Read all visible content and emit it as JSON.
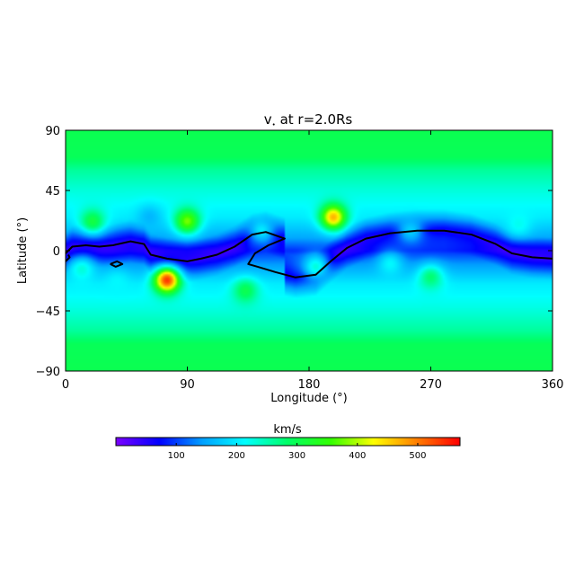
{
  "chart_data": {
    "type": "heatmap",
    "title": "v",
    "title_subscript": "•",
    "title_rest": " at r=2.0Rs",
    "xlabel": "Longitude (°)",
    "ylabel": "Latitude (°)",
    "xlim": [
      0,
      360
    ],
    "ylim": [
      -90,
      90
    ],
    "xticks": [
      "0",
      "90",
      "180",
      "270",
      "360"
    ],
    "yticks": [
      "90",
      "45",
      "0",
      "−45",
      "−90"
    ],
    "xtick_values": [
      0,
      90,
      180,
      270,
      360
    ],
    "ytick_values": [
      90,
      45,
      0,
      -45,
      -90
    ],
    "colorbar": {
      "label": "km/s",
      "range": [
        0,
        570
      ],
      "ticks": [
        "100",
        "200",
        "300",
        "400",
        "500"
      ],
      "tick_values": [
        100,
        200,
        300,
        400,
        500
      ],
      "colormap": [
        "#7a00ff",
        "#0000ff",
        "#00a0ff",
        "#00ffff",
        "#00ff66",
        "#33ff00",
        "#ffff00",
        "#ff8000",
        "#ff0000"
      ]
    },
    "background_field": [
      {
        "lat": 90,
        "v": 300
      },
      {
        "lat": 70,
        "v": 295
      },
      {
        "lat": 60,
        "v": 260
      },
      {
        "lat": 45,
        "v": 230
      },
      {
        "lat": 25,
        "v": 200
      },
      {
        "lat": 10,
        "v": 150
      },
      {
        "lat": 0,
        "v": 90
      },
      {
        "lat": -10,
        "v": 140
      },
      {
        "lat": -25,
        "v": 200
      },
      {
        "lat": -45,
        "v": 230
      },
      {
        "lat": -60,
        "v": 260
      },
      {
        "lat": -70,
        "v": 295
      },
      {
        "lat": -90,
        "v": 300
      }
    ],
    "features": [
      {
        "lon": 20,
        "lat": 22,
        "v": 310
      },
      {
        "lon": 12,
        "lat": -14,
        "v": 230
      },
      {
        "lon": 90,
        "lat": 22,
        "v": 380
      },
      {
        "lon": 198,
        "lat": 25,
        "v": 470
      },
      {
        "lon": 75,
        "lat": -22,
        "v": 540
      },
      {
        "lon": 133,
        "lat": -30,
        "v": 300
      },
      {
        "lon": 270,
        "lat": -20,
        "v": 280
      },
      {
        "lon": 185,
        "lat": -12,
        "v": 230
      },
      {
        "lon": 145,
        "lat": 15,
        "v": 200
      },
      {
        "lon": 240,
        "lat": -10,
        "v": 210
      },
      {
        "lon": 335,
        "lat": 20,
        "v": 220
      },
      {
        "lon": 38,
        "lat": -24,
        "v": 210
      },
      {
        "lon": 255,
        "lat": 15,
        "v": 180
      },
      {
        "lon": 62,
        "lat": 25,
        "v": 160
      }
    ],
    "neutral_line": [
      [
        0,
        -2
      ],
      [
        5,
        3
      ],
      [
        15,
        4
      ],
      [
        25,
        3
      ],
      [
        35,
        4
      ],
      [
        48,
        7
      ],
      [
        58,
        5
      ],
      [
        63,
        -3
      ],
      [
        75,
        -6
      ],
      [
        90,
        -8
      ],
      [
        100,
        -6
      ],
      [
        112,
        -3
      ],
      [
        125,
        3
      ],
      [
        138,
        12
      ],
      [
        148,
        14
      ],
      [
        162,
        9
      ],
      [
        150,
        4
      ],
      [
        140,
        -2
      ],
      [
        135,
        -10
      ],
      [
        142,
        -12
      ],
      [
        155,
        -16
      ],
      [
        170,
        -20
      ],
      [
        185,
        -18
      ],
      [
        196,
        -8
      ],
      [
        208,
        2
      ],
      [
        222,
        9
      ],
      [
        240,
        13
      ],
      [
        260,
        15
      ],
      [
        280,
        15
      ],
      [
        300,
        12
      ],
      [
        318,
        5
      ],
      [
        330,
        -2
      ],
      [
        345,
        -5
      ],
      [
        360,
        -6
      ]
    ],
    "neutral_loops": [
      [
        [
          33,
          -10
        ],
        [
          37,
          -12
        ],
        [
          42,
          -10
        ],
        [
          38,
          -8
        ],
        [
          33,
          -10
        ]
      ],
      [
        [
          0,
          -8
        ],
        [
          3,
          -5
        ],
        [
          2,
          -3
        ]
      ]
    ]
  }
}
